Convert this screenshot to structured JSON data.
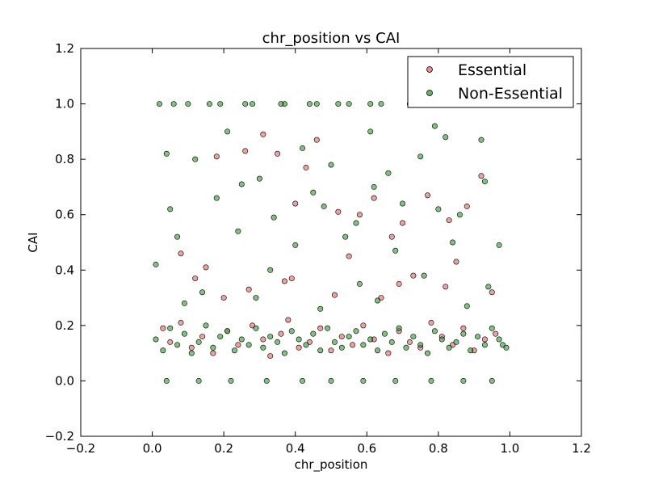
{
  "chart_data": {
    "type": "scatter",
    "title": "chr_position vs CAI",
    "xlabel": "chr_position",
    "ylabel": "CAI",
    "xlim": [
      -0.2,
      1.2
    ],
    "ylim": [
      -0.2,
      1.2
    ],
    "xticks": [
      -0.2,
      0.0,
      0.2,
      0.4,
      0.6,
      0.8,
      1.0,
      1.2
    ],
    "yticks": [
      -0.2,
      0.0,
      0.2,
      0.4,
      0.6,
      0.8,
      1.0,
      1.2
    ],
    "xtick_labels": [
      "−0.2",
      "0.0",
      "0.2",
      "0.4",
      "0.6",
      "0.8",
      "1.0",
      "1.2"
    ],
    "ytick_labels": [
      "−0.2",
      "0.0",
      "0.2",
      "0.4",
      "0.6",
      "0.8",
      "1.0",
      "1.2"
    ],
    "grid": false,
    "legend_position": "top-right",
    "legend_entries": [
      "Essential",
      "Non-Essential"
    ],
    "series": [
      {
        "name": "Essential",
        "color": "#e06666",
        "edge_color": "#000000",
        "x": [
          0.03,
          0.05,
          0.08,
          0.11,
          0.14,
          0.17,
          0.21,
          0.24,
          0.28,
          0.31,
          0.33,
          0.36,
          0.38,
          0.41,
          0.44,
          0.47,
          0.5,
          0.53,
          0.56,
          0.59,
          0.62,
          0.66,
          0.69,
          0.72,
          0.75,
          0.78,
          0.81,
          0.84,
          0.87,
          0.9,
          0.93,
          0.96,
          0.15,
          0.27,
          0.39,
          0.55,
          0.64,
          0.73,
          0.85,
          0.95,
          0.18,
          0.35,
          0.43,
          0.58,
          0.67,
          0.88,
          0.08,
          0.52,
          0.26,
          0.4,
          0.62,
          0.77,
          0.92,
          0.12,
          0.31,
          0.46,
          0.7,
          0.83,
          0.2,
          0.37,
          0.51,
          0.69,
          0.82
        ],
        "y": [
          0.19,
          0.14,
          0.21,
          0.12,
          0.16,
          0.1,
          0.18,
          0.13,
          0.2,
          0.15,
          0.09,
          0.17,
          0.22,
          0.12,
          0.14,
          0.19,
          0.11,
          0.16,
          0.13,
          0.2,
          0.15,
          0.1,
          0.18,
          0.14,
          0.12,
          0.21,
          0.16,
          0.13,
          0.19,
          0.11,
          0.15,
          0.17,
          0.41,
          0.33,
          0.37,
          0.45,
          0.3,
          0.38,
          0.43,
          0.32,
          0.81,
          0.82,
          0.77,
          0.6,
          0.52,
          0.63,
          0.46,
          0.61,
          0.83,
          0.64,
          0.66,
          0.67,
          0.74,
          0.37,
          0.89,
          0.87,
          0.57,
          0.58,
          0.3,
          0.36,
          0.31,
          0.35,
          0.34
        ]
      },
      {
        "name": "Non-Essential",
        "color": "#339933",
        "edge_color": "#000000",
        "x": [
          0.01,
          0.03,
          0.05,
          0.07,
          0.09,
          0.11,
          0.13,
          0.15,
          0.17,
          0.19,
          0.21,
          0.23,
          0.25,
          0.27,
          0.29,
          0.31,
          0.33,
          0.35,
          0.37,
          0.39,
          0.41,
          0.43,
          0.45,
          0.47,
          0.49,
          0.51,
          0.53,
          0.55,
          0.57,
          0.59,
          0.61,
          0.63,
          0.65,
          0.67,
          0.69,
          0.71,
          0.73,
          0.75,
          0.77,
          0.79,
          0.81,
          0.83,
          0.85,
          0.87,
          0.89,
          0.91,
          0.93,
          0.95,
          0.97,
          0.99,
          0.02,
          0.1,
          0.19,
          0.28,
          0.37,
          0.46,
          0.55,
          0.64,
          0.73,
          0.82,
          0.91,
          0.06,
          0.16,
          0.26,
          0.36,
          0.44,
          0.52,
          0.61,
          0.72,
          0.81,
          0.9,
          0.98,
          0.04,
          0.13,
          0.22,
          0.32,
          0.42,
          0.5,
          0.59,
          0.68,
          0.78,
          0.87,
          0.95,
          0.21,
          0.42,
          0.61,
          0.79,
          0.82,
          0.92,
          0.04,
          0.12,
          0.3,
          0.5,
          0.66,
          0.75,
          0.93,
          0.05,
          0.18,
          0.34,
          0.48,
          0.57,
          0.7,
          0.86,
          0.25,
          0.45,
          0.62,
          0.8,
          0.07,
          0.24,
          0.4,
          0.54,
          0.68,
          0.84,
          0.97,
          0.14,
          0.33,
          0.58,
          0.76,
          0.94,
          0.09,
          0.29,
          0.47,
          0.63,
          0.88,
          0.01,
          0.98
        ],
        "y": [
          0.15,
          0.11,
          0.19,
          0.13,
          0.17,
          0.1,
          0.14,
          0.2,
          0.12,
          0.16,
          0.18,
          0.11,
          0.15,
          0.13,
          0.19,
          0.12,
          0.16,
          0.14,
          0.1,
          0.18,
          0.15,
          0.13,
          0.17,
          0.11,
          0.19,
          0.14,
          0.12,
          0.16,
          0.18,
          0.13,
          0.15,
          0.11,
          0.17,
          0.14,
          0.19,
          0.12,
          0.16,
          0.13,
          0.1,
          0.18,
          0.15,
          0.12,
          0.14,
          0.17,
          0.11,
          0.16,
          0.13,
          0.19,
          0.15,
          0.12,
          1.0,
          1.0,
          1.0,
          1.0,
          1.0,
          1.0,
          1.0,
          1.0,
          1.0,
          1.0,
          1.0,
          1.0,
          1.0,
          1.0,
          1.0,
          1.0,
          1.0,
          1.0,
          1.0,
          1.0,
          1.0,
          1.0,
          0.0,
          0.0,
          0.0,
          0.0,
          0.0,
          0.0,
          0.0,
          0.0,
          0.0,
          0.0,
          0.0,
          0.9,
          0.84,
          0.9,
          0.92,
          0.88,
          0.87,
          0.82,
          0.8,
          0.73,
          0.78,
          0.75,
          0.81,
          0.72,
          0.62,
          0.66,
          0.59,
          0.63,
          0.57,
          0.64,
          0.6,
          0.71,
          0.68,
          0.7,
          0.62,
          0.52,
          0.54,
          0.49,
          0.52,
          0.47,
          0.5,
          0.49,
          0.32,
          0.4,
          0.35,
          0.38,
          0.34,
          0.28,
          0.3,
          0.26,
          0.29,
          0.27,
          0.42,
          0.13
        ]
      }
    ]
  }
}
